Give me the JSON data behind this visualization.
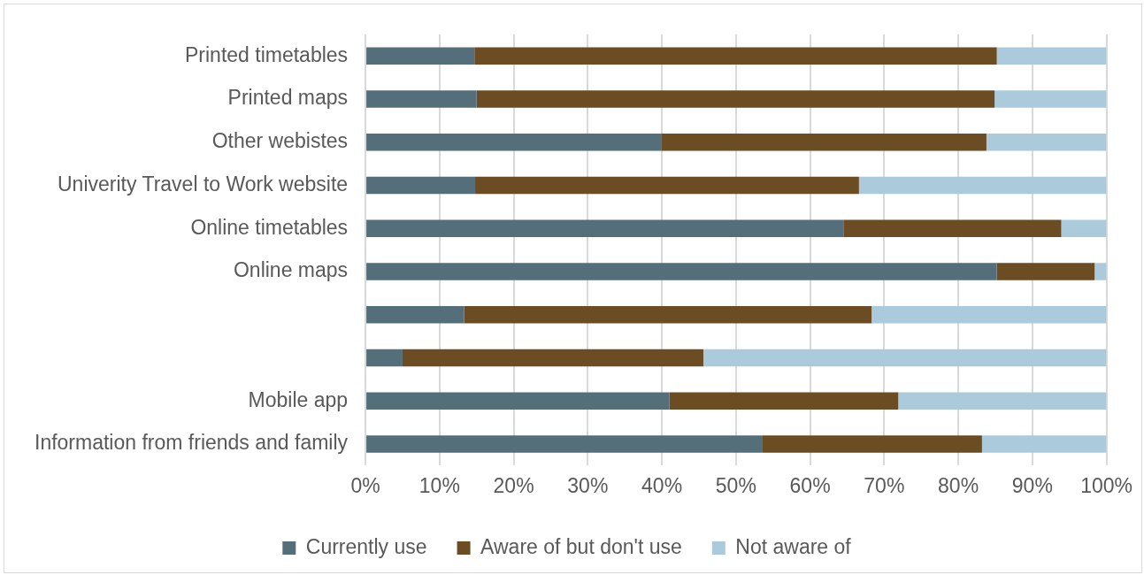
{
  "chart_data": {
    "type": "bar",
    "orientation": "horizontal",
    "stacked": true,
    "categories": [
      "Printed timetables",
      "Printed maps",
      "Other webistes",
      "Univerity Travel to Work website",
      "Online timetables",
      "Online maps",
      null,
      null,
      "Mobile app",
      "Information from friends and family"
    ],
    "series": [
      {
        "name": "Currently use",
        "color": "#546e7a",
        "values": [
          14.7,
          15.0,
          39.9,
          14.8,
          64.5,
          85.2,
          13.3,
          5.0,
          41.0,
          53.6
        ]
      },
      {
        "name": "Aware of but don't use",
        "color": "#6b4c23",
        "values": [
          70.5,
          69.9,
          43.9,
          51.8,
          29.4,
          13.2,
          55.0,
          40.6,
          30.9,
          29.6
        ]
      },
      {
        "name": "Not aware of",
        "color": "#abcbdc",
        "values": [
          14.8,
          15.1,
          16.2,
          33.4,
          6.1,
          1.6,
          31.7,
          54.4,
          28.1,
          16.8
        ]
      }
    ],
    "xlim": [
      0,
      100
    ],
    "xticks": [
      {
        "value": 0,
        "label": "0%"
      },
      {
        "value": 10,
        "label": "10%"
      },
      {
        "value": 20,
        "label": "20%"
      },
      {
        "value": 30,
        "label": "30%"
      },
      {
        "value": 40,
        "label": "40%"
      },
      {
        "value": 50,
        "label": "50%"
      },
      {
        "value": 60,
        "label": "60%"
      },
      {
        "value": 70,
        "label": "70%"
      },
      {
        "value": 80,
        "label": "80%"
      },
      {
        "value": 90,
        "label": "90%"
      },
      {
        "value": 100,
        "label": "100%"
      }
    ],
    "grid": "x",
    "legend": "bottom"
  }
}
